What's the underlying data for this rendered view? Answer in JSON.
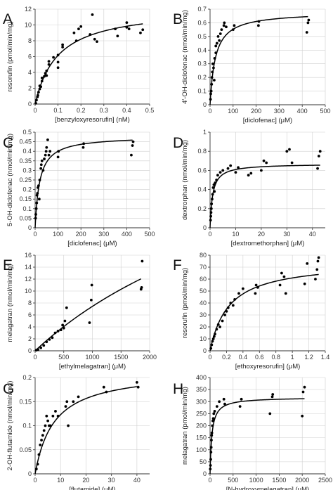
{
  "chart_data": [
    {
      "panel": "A",
      "type": "scatter",
      "xlabel": "[benzyloxyresorufin] (nM)",
      "ylabel": "resorufin (pmol/min/mg)",
      "xlim": [
        0,
        0.5
      ],
      "ylim": [
        0,
        12
      ],
      "xticks": [
        0,
        0.1,
        0.2,
        0.3,
        0.4,
        0.5
      ],
      "yticks": [
        0,
        2,
        4,
        6,
        8,
        10,
        12
      ],
      "xtick_labels": [
        "0",
        "0.1",
        "0.2",
        "0.3",
        "0.4",
        "0.5"
      ],
      "ytick_labels": [
        "0",
        "2",
        "4",
        "6",
        "8",
        "10",
        "12"
      ],
      "grid": true,
      "fit": {
        "model": "michaelis-menten",
        "vmax": 12.3,
        "km": 0.1,
        "xmax": 0.47
      },
      "points": [
        [
          0.003,
          0.1
        ],
        [
          0.006,
          0.5
        ],
        [
          0.01,
          0.9
        ],
        [
          0.012,
          1.1
        ],
        [
          0.015,
          1.5
        ],
        [
          0.02,
          1.9
        ],
        [
          0.02,
          2.3
        ],
        [
          0.025,
          2.2
        ],
        [
          0.03,
          2.9
        ],
        [
          0.03,
          3.3
        ],
        [
          0.04,
          3.5
        ],
        [
          0.045,
          3.9
        ],
        [
          0.05,
          3.6
        ],
        [
          0.05,
          4.2
        ],
        [
          0.06,
          5.0
        ],
        [
          0.06,
          5.4
        ],
        [
          0.08,
          5.9
        ],
        [
          0.1,
          5.3
        ],
        [
          0.1,
          4.6
        ],
        [
          0.1,
          6.2
        ],
        [
          0.12,
          7.2
        ],
        [
          0.12,
          7.5
        ],
        [
          0.17,
          9.0
        ],
        [
          0.18,
          8.0
        ],
        [
          0.19,
          9.5
        ],
        [
          0.2,
          9.8
        ],
        [
          0.24,
          8.8
        ],
        [
          0.25,
          11.3
        ],
        [
          0.26,
          8.2
        ],
        [
          0.27,
          7.9
        ],
        [
          0.35,
          9.5
        ],
        [
          0.36,
          8.6
        ],
        [
          0.4,
          9.7
        ],
        [
          0.4,
          10.3
        ],
        [
          0.41,
          9.5
        ],
        [
          0.46,
          9.0
        ],
        [
          0.47,
          9.4
        ]
      ]
    },
    {
      "panel": "B",
      "type": "scatter",
      "xlabel": "[diclofenac] (μM)",
      "ylabel": "4′-OH-diclofenac (nmol/min/mg)",
      "xlim": [
        0,
        500
      ],
      "ylim": [
        0,
        0.7
      ],
      "xticks": [
        0,
        100,
        200,
        300,
        400,
        500
      ],
      "yticks": [
        0,
        0.1,
        0.2,
        0.3,
        0.4,
        0.5,
        0.6,
        0.7
      ],
      "xtick_labels": [
        "0",
        "100",
        "200",
        "300",
        "400",
        "500"
      ],
      "ytick_labels": [
        "0",
        "0.1",
        "0.2",
        "0.3",
        "0.4",
        "0.5",
        "0.6",
        "0.7"
      ],
      "grid": true,
      "fit": {
        "model": "michaelis-menten",
        "vmax": 0.68,
        "km": 23,
        "xmax": 425
      },
      "points": [
        [
          2,
          0.04
        ],
        [
          3,
          0.08
        ],
        [
          5,
          0.1
        ],
        [
          7,
          0.15
        ],
        [
          8,
          0.2
        ],
        [
          10,
          0.24
        ],
        [
          12,
          0.3
        ],
        [
          15,
          0.27
        ],
        [
          18,
          0.18
        ],
        [
          20,
          0.34
        ],
        [
          25,
          0.38
        ],
        [
          25,
          0.43
        ],
        [
          30,
          0.45
        ],
        [
          35,
          0.5
        ],
        [
          40,
          0.47
        ],
        [
          45,
          0.52
        ],
        [
          50,
          0.55
        ],
        [
          60,
          0.58
        ],
        [
          62,
          0.6
        ],
        [
          70,
          0.57
        ],
        [
          100,
          0.55
        ],
        [
          105,
          0.58
        ],
        [
          210,
          0.58
        ],
        [
          212,
          0.61
        ],
        [
          420,
          0.53
        ],
        [
          425,
          0.6
        ],
        [
          428,
          0.62
        ]
      ]
    },
    {
      "panel": "C",
      "type": "scatter",
      "xlabel": "[diclofenac] (μM)",
      "ylabel": "5-OH-diclofenac (nmol/min/mg)",
      "xlim": [
        0,
        500
      ],
      "ylim": [
        0,
        0.5
      ],
      "xticks": [
        0,
        100,
        200,
        300,
        400,
        500
      ],
      "yticks": [
        0,
        0.05,
        0.1,
        0.15,
        0.2,
        0.25,
        0.3,
        0.35,
        0.4,
        0.45,
        0.5
      ],
      "xtick_labels": [
        "0",
        "100",
        "200",
        "300",
        "400",
        "500"
      ],
      "ytick_labels": [
        "0",
        "0.05",
        "0.1",
        "0.15",
        "0.2",
        "0.25",
        "0.3",
        "0.35",
        "0.4",
        "0.45",
        "0.5"
      ],
      "grid": true,
      "fit": {
        "model": "michaelis-menten",
        "vmax": 0.48,
        "km": 20,
        "xmax": 425
      },
      "points": [
        [
          2,
          0.05
        ],
        [
          3,
          0.07
        ],
        [
          5,
          0.1
        ],
        [
          7,
          0.13
        ],
        [
          8,
          0.17
        ],
        [
          10,
          0.18
        ],
        [
          12,
          0.21
        ],
        [
          15,
          0.22
        ],
        [
          18,
          0.15
        ],
        [
          20,
          0.25
        ],
        [
          25,
          0.31
        ],
        [
          27,
          0.33
        ],
        [
          30,
          0.35
        ],
        [
          35,
          0.3
        ],
        [
          40,
          0.36
        ],
        [
          45,
          0.38
        ],
        [
          48,
          0.4
        ],
        [
          50,
          0.42
        ],
        [
          55,
          0.46
        ],
        [
          60,
          0.38
        ],
        [
          65,
          0.4
        ],
        [
          100,
          0.37
        ],
        [
          102,
          0.4
        ],
        [
          210,
          0.42
        ],
        [
          212,
          0.44
        ],
        [
          420,
          0.38
        ],
        [
          425,
          0.43
        ],
        [
          428,
          0.45
        ]
      ]
    },
    {
      "panel": "D",
      "type": "scatter",
      "xlabel": "[dextromethorphan] (μM)",
      "ylabel": "dextrorphan (nmol/min/mg)",
      "xlim": [
        0,
        45
      ],
      "ylim": [
        0,
        1
      ],
      "xticks": [
        0,
        10,
        20,
        30,
        40
      ],
      "yticks": [
        0,
        0.2,
        0.4,
        0.6,
        0.8,
        1
      ],
      "xtick_labels": [
        "0",
        "10",
        "20",
        "30",
        "40"
      ],
      "ytick_labels": [
        "0",
        "0.2",
        "0.4",
        "0.6",
        "0.8",
        "1"
      ],
      "grid": true,
      "fit": {
        "model": "michaelis-menten",
        "vmax": 0.67,
        "km": 1.0,
        "xmax": 43
      },
      "points": [
        [
          0.2,
          0.08
        ],
        [
          0.3,
          0.12
        ],
        [
          0.4,
          0.16
        ],
        [
          0.5,
          0.2
        ],
        [
          0.6,
          0.25
        ],
        [
          0.8,
          0.3
        ],
        [
          1,
          0.35
        ],
        [
          1.2,
          0.42
        ],
        [
          1.5,
          0.45
        ],
        [
          1.7,
          0.38
        ],
        [
          2,
          0.47
        ],
        [
          2.5,
          0.5
        ],
        [
          3,
          0.55
        ],
        [
          4,
          0.58
        ],
        [
          5,
          0.6
        ],
        [
          7,
          0.62
        ],
        [
          8,
          0.65
        ],
        [
          10,
          0.58
        ],
        [
          11,
          0.63
        ],
        [
          15,
          0.55
        ],
        [
          16,
          0.57
        ],
        [
          20,
          0.6
        ],
        [
          21,
          0.7
        ],
        [
          22,
          0.68
        ],
        [
          30,
          0.8
        ],
        [
          31,
          0.82
        ],
        [
          32,
          0.68
        ],
        [
          42,
          0.62
        ],
        [
          42.5,
          0.75
        ],
        [
          43,
          0.8
        ]
      ]
    },
    {
      "panel": "E",
      "type": "scatter",
      "xlabel": "[ethylmelagatran] (μM)",
      "ylabel": "melagatran (nmol/min/mg)",
      "xlim": [
        0,
        2000
      ],
      "ylim": [
        0,
        16
      ],
      "xticks": [
        0,
        500,
        1000,
        1500,
        2000
      ],
      "yticks": [
        0,
        2,
        4,
        6,
        8,
        10,
        12,
        14,
        16
      ],
      "xtick_labels": [
        "0",
        "500",
        "1000",
        "1500",
        "2000"
      ],
      "ytick_labels": [
        "0",
        "2",
        "4",
        "6",
        "8",
        "10",
        "12",
        "14",
        "16"
      ],
      "grid": true,
      "fit": {
        "model": "michaelis-menten",
        "vmax": 44.6,
        "km": 5000,
        "xmax": 1850
      },
      "points": [
        [
          20,
          0.1
        ],
        [
          50,
          0.2
        ],
        [
          100,
          0.5
        ],
        [
          150,
          0.9
        ],
        [
          200,
          1.5
        ],
        [
          250,
          1.9
        ],
        [
          300,
          2.2
        ],
        [
          350,
          3.0
        ],
        [
          400,
          3.3
        ],
        [
          450,
          3.5
        ],
        [
          480,
          4.3
        ],
        [
          500,
          3.8
        ],
        [
          520,
          5.0
        ],
        [
          550,
          7.2
        ],
        [
          950,
          4.7
        ],
        [
          980,
          8.5
        ],
        [
          990,
          11.0
        ],
        [
          1850,
          10.3
        ],
        [
          1860,
          10.6
        ],
        [
          1870,
          15.0
        ]
      ]
    },
    {
      "panel": "F",
      "type": "scatter",
      "xlabel": "[ethoxyresorufin] (μM)",
      "ylabel": "resorufin (pmol/min/mg)",
      "xlim": [
        0,
        1.4
      ],
      "ylim": [
        0,
        80
      ],
      "xticks": [
        0,
        0.2,
        0.4,
        0.6,
        0.8,
        1,
        1.2,
        1.4
      ],
      "yticks": [
        0,
        10,
        20,
        30,
        40,
        50,
        60,
        70,
        80
      ],
      "xtick_labels": [
        "0",
        "0.2",
        "0.4",
        "0.6",
        "0.8",
        "1",
        "1.2",
        "1.4"
      ],
      "ytick_labels": [
        "0",
        "10",
        "20",
        "30",
        "40",
        "50",
        "60",
        "70",
        "80"
      ],
      "grid": true,
      "fit": {
        "model": "michaelis-menten",
        "vmax": 75,
        "km": 0.23,
        "xmax": 1.32
      },
      "points": [
        [
          0.01,
          2
        ],
        [
          0.02,
          5
        ],
        [
          0.03,
          8
        ],
        [
          0.04,
          10
        ],
        [
          0.05,
          12
        ],
        [
          0.06,
          14
        ],
        [
          0.08,
          18
        ],
        [
          0.1,
          22
        ],
        [
          0.12,
          20
        ],
        [
          0.15,
          25
        ],
        [
          0.18,
          30
        ],
        [
          0.2,
          33
        ],
        [
          0.22,
          36
        ],
        [
          0.25,
          40
        ],
        [
          0.28,
          38
        ],
        [
          0.3,
          43
        ],
        [
          0.35,
          48
        ],
        [
          0.4,
          52
        ],
        [
          0.55,
          48
        ],
        [
          0.56,
          55
        ],
        [
          0.58,
          53
        ],
        [
          0.85,
          55
        ],
        [
          0.87,
          65
        ],
        [
          0.9,
          62
        ],
        [
          0.92,
          48
        ],
        [
          1.15,
          56
        ],
        [
          1.18,
          73
        ],
        [
          1.28,
          60
        ],
        [
          1.3,
          68
        ],
        [
          1.31,
          75
        ],
        [
          1.32,
          78
        ]
      ]
    },
    {
      "panel": "G",
      "type": "scatter",
      "xlabel": "[flutamide] (μM)",
      "ylabel": "2-OH-flutamide (nmol/min/mg)",
      "xlim": [
        0,
        45
      ],
      "ylim": [
        0,
        0.2
      ],
      "xticks": [
        0,
        10,
        20,
        30,
        40
      ],
      "yticks": [
        0,
        0.05,
        0.1,
        0.15,
        0.2
      ],
      "xtick_labels": [
        "0",
        "10",
        "20",
        "30",
        "40"
      ],
      "ytick_labels": [
        "0",
        "0.05",
        "0.1",
        "0.15",
        "0.2"
      ],
      "grid": true,
      "fit": {
        "model": "michaelis-menten",
        "vmax": 0.215,
        "km": 7.5,
        "xmax": 40
      },
      "points": [
        [
          0.5,
          0.01
        ],
        [
          1,
          0.02
        ],
        [
          1.5,
          0.04
        ],
        [
          2,
          0.06
        ],
        [
          2.5,
          0.07
        ],
        [
          3,
          0.08
        ],
        [
          3.5,
          0.09
        ],
        [
          4,
          0.1
        ],
        [
          4.5,
          0.12
        ],
        [
          5,
          0.11
        ],
        [
          5.5,
          0.1
        ],
        [
          6,
          0.1
        ],
        [
          7,
          0.12
        ],
        [
          8,
          0.13
        ],
        [
          9,
          0.12
        ],
        [
          12,
          0.14
        ],
        [
          12.5,
          0.15
        ],
        [
          13,
          0.1
        ],
        [
          15,
          0.15
        ],
        [
          17,
          0.16
        ],
        [
          27,
          0.18
        ],
        [
          28,
          0.17
        ],
        [
          40,
          0.19
        ],
        [
          40.5,
          0.18
        ]
      ]
    },
    {
      "panel": "H",
      "type": "scatter",
      "xlabel": "[N-hydroxymelagatran] (μM)",
      "ylabel": "melagatran (pmol/min/mg)",
      "xlim": [
        0,
        2500
      ],
      "ylim": [
        0,
        400
      ],
      "xticks": [
        0,
        500,
        1000,
        1500,
        2000,
        2500
      ],
      "yticks": [
        0,
        50,
        100,
        150,
        200,
        250,
        300,
        350,
        400
      ],
      "xtick_labels": [
        "0",
        "500",
        "1000",
        "1500",
        "2000",
        "2500"
      ],
      "ytick_labels": [
        "0",
        "50",
        "100",
        "150",
        "200",
        "250",
        "300",
        "350",
        "400"
      ],
      "grid": true,
      "fit": {
        "model": "michaelis-menten",
        "vmax": 318,
        "km": 40,
        "xmax": 2050
      },
      "points": [
        [
          5,
          20
        ],
        [
          10,
          35
        ],
        [
          15,
          60
        ],
        [
          20,
          90
        ],
        [
          25,
          110
        ],
        [
          30,
          140
        ],
        [
          35,
          160
        ],
        [
          40,
          170
        ],
        [
          50,
          200
        ],
        [
          60,
          220
        ],
        [
          70,
          230
        ],
        [
          80,
          250
        ],
        [
          100,
          260
        ],
        [
          150,
          280
        ],
        [
          200,
          300
        ],
        [
          300,
          310
        ],
        [
          320,
          290
        ],
        [
          650,
          280
        ],
        [
          680,
          310
        ],
        [
          1300,
          250
        ],
        [
          1350,
          320
        ],
        [
          1360,
          330
        ],
        [
          2000,
          240
        ],
        [
          2020,
          340
        ],
        [
          2050,
          360
        ]
      ]
    }
  ]
}
